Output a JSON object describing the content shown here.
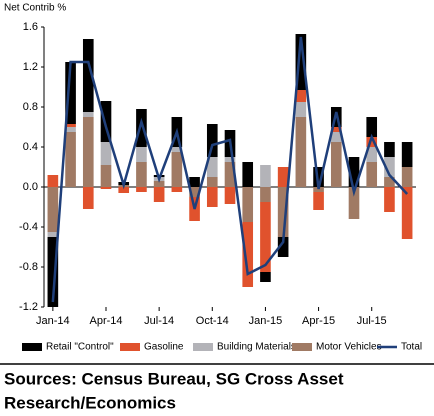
{
  "chart_data": {
    "type": "bar",
    "y_label": "Net Contrib %",
    "categories": [
      "Jan-14",
      null,
      null,
      "Apr-14",
      null,
      null,
      "Jul-14",
      null,
      null,
      "Oct-14",
      null,
      null,
      "Jan-15",
      null,
      null,
      "Apr-15",
      null,
      null,
      "Jul-15",
      null,
      null
    ],
    "series": [
      {
        "name": "Retail \"Control\"",
        "color": "#000000",
        "values": [
          -0.7,
          0.62,
          0.73,
          0.41,
          0.03,
          0.38,
          0.02,
          0.3,
          0.1,
          0.33,
          0.27,
          0.25,
          -0.1,
          -0.2,
          0.56,
          0.2,
          0.2,
          0.3,
          0.2,
          0.15,
          0.25
        ]
      },
      {
        "name": "Gasoline",
        "color": "#e0522d",
        "values": [
          0.12,
          0.03,
          -0.22,
          -0.02,
          -0.06,
          -0.05,
          -0.15,
          -0.05,
          -0.24,
          -0.2,
          -0.17,
          -0.65,
          -0.7,
          0.2,
          0.12,
          -0.18,
          0.05,
          0.0,
          0.1,
          -0.25,
          -0.52
        ]
      },
      {
        "name": "Building Materials",
        "color": "#b3b3b8",
        "values": [
          -0.05,
          0.05,
          0.05,
          0.23,
          0.0,
          0.15,
          0.04,
          0.05,
          0.0,
          0.2,
          0.05,
          0.0,
          0.22,
          0.0,
          0.15,
          0.0,
          0.1,
          0.0,
          0.15,
          0.2,
          0.0
        ]
      },
      {
        "name": "Motor Vehicles",
        "color": "#a07a64",
        "values": [
          -0.45,
          0.55,
          0.7,
          0.22,
          0.02,
          0.25,
          0.06,
          0.35,
          -0.1,
          0.1,
          0.25,
          -0.35,
          -0.15,
          -0.5,
          0.7,
          -0.05,
          0.45,
          -0.32,
          0.25,
          0.1,
          0.2
        ]
      },
      {
        "name": "Total",
        "color": "#1f3f7a",
        "type": "line",
        "values": [
          -1.15,
          1.25,
          1.25,
          0.6,
          0.02,
          0.65,
          0.08,
          0.55,
          -0.22,
          0.42,
          0.47,
          -0.87,
          -0.78,
          -0.55,
          1.5,
          -0.02,
          0.75,
          -0.05,
          0.5,
          0.12,
          -0.07
        ]
      }
    ],
    "ylim": [
      -1.2,
      1.6
    ],
    "yticks": [
      -1.2,
      -0.8,
      -0.4,
      {
        "value": 0,
        "label": "0.0"
      },
      0.4,
      0.8,
      1.2,
      1.6
    ],
    "legend": "bottom",
    "source": [
      "Sources: Census Bureau, SG Cross Asset",
      "Research/Economics"
    ]
  }
}
